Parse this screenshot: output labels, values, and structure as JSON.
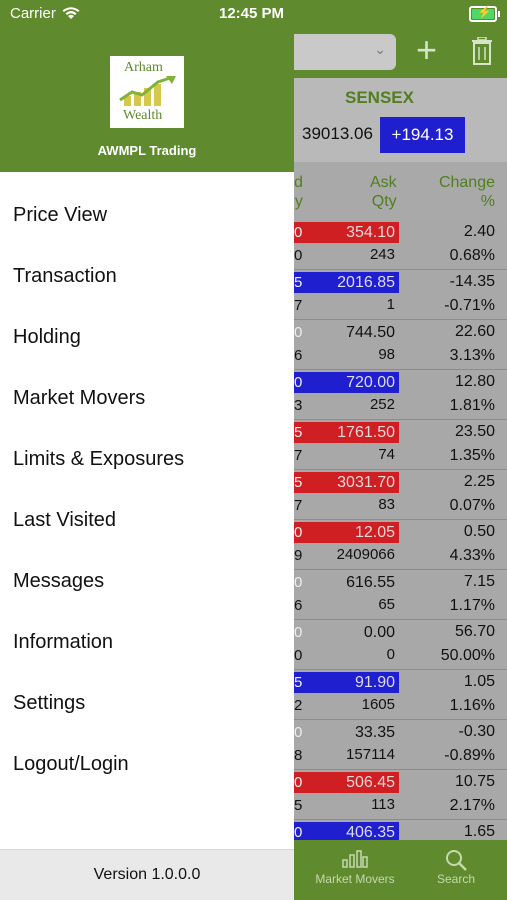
{
  "status_bar": {
    "carrier": "Carrier",
    "time": "12:45 PM"
  },
  "drawer": {
    "logo": {
      "line1": "Arham",
      "line2": "Wealth"
    },
    "company_name": "AWMPL Trading",
    "menu": [
      {
        "label": "Price View"
      },
      {
        "label": "Transaction"
      },
      {
        "label": "Holding"
      },
      {
        "label": "Market Movers"
      },
      {
        "label": "Limits & Exposures"
      },
      {
        "label": "Last Visited"
      },
      {
        "label": "Messages"
      },
      {
        "label": "Information"
      },
      {
        "label": "Settings"
      },
      {
        "label": "Logout/Login"
      }
    ],
    "version": "Version 1.0.0.0"
  },
  "background": {
    "index": {
      "name": "SENSEX",
      "value": "39013.06",
      "change": "+194.13"
    },
    "headers": {
      "bid_line1": "d",
      "bid_line2": "y",
      "ask_line1": "Ask",
      "ask_line2": "Qty",
      "chg_line1": "Change",
      "chg_line2": "%"
    },
    "rows": [
      {
        "bid": "0",
        "bidq": "0",
        "ask": "354.10",
        "askq": "243",
        "chg": "2.40",
        "chgp": "0.68%",
        "color": "red"
      },
      {
        "bid": "5",
        "bidq": "7",
        "ask": "2016.85",
        "askq": "1",
        "chg": "-14.35",
        "chgp": "-0.71%",
        "color": "blue"
      },
      {
        "bid": "0",
        "bidq": "6",
        "ask": "744.50",
        "askq": "98",
        "chg": "22.60",
        "chgp": "3.13%",
        "color": ""
      },
      {
        "bid": "0",
        "bidq": "3",
        "ask": "720.00",
        "askq": "252",
        "chg": "12.80",
        "chgp": "1.81%",
        "color": "blue"
      },
      {
        "bid": "5",
        "bidq": "7",
        "ask": "1761.50",
        "askq": "74",
        "chg": "23.50",
        "chgp": "1.35%",
        "color": "red"
      },
      {
        "bid": "5",
        "bidq": "7",
        "ask": "3031.70",
        "askq": "83",
        "chg": "2.25",
        "chgp": "0.07%",
        "color": "red"
      },
      {
        "bid": "0",
        "bidq": "9",
        "ask": "12.05",
        "askq": "2409066",
        "chg": "0.50",
        "chgp": "4.33%",
        "color": "red"
      },
      {
        "bid": "0",
        "bidq": "6",
        "ask": "616.55",
        "askq": "65",
        "chg": "7.15",
        "chgp": "1.17%",
        "color": ""
      },
      {
        "bid": "0",
        "bidq": "0",
        "ask": "0.00",
        "askq": "0",
        "chg": "56.70",
        "chgp": "50.00%",
        "color": ""
      },
      {
        "bid": "5",
        "bidq": "2",
        "ask": "91.90",
        "askq": "1605",
        "chg": "1.05",
        "chgp": "1.16%",
        "color": "blue"
      },
      {
        "bid": "0",
        "bidq": "8",
        "ask": "33.35",
        "askq": "157114",
        "chg": "-0.30",
        "chgp": "-0.89%",
        "color": ""
      },
      {
        "bid": "0",
        "bidq": "5",
        "ask": "506.45",
        "askq": "113",
        "chg": "10.75",
        "chgp": "2.17%",
        "color": "red"
      },
      {
        "bid": "0",
        "bidq": "",
        "ask": "406.35",
        "askq": "",
        "chg": "1.65",
        "chgp": "",
        "color": "blue"
      }
    ],
    "tabs": {
      "market_movers": "Market Movers",
      "search": "Search"
    }
  },
  "colors": {
    "brand_green": "#5f8a2d",
    "up_red": "#cf1f22",
    "down_blue": "#1f1fcf"
  }
}
